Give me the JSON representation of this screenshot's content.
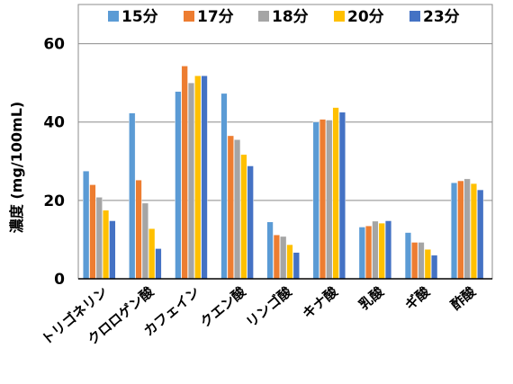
{
  "chart_data": {
    "type": "bar",
    "ylabel": "濃度 (mg/100mL)",
    "ylim": [
      0,
      70
    ],
    "yticks": [
      0,
      20,
      40,
      60
    ],
    "grid": true,
    "legend_position": "top",
    "categories": [
      "トリゴネリン",
      "クロロゲン酸",
      "カフェイン",
      "クエン酸",
      "リンゴ酸",
      "キナ酸",
      "乳酸",
      "ギ酸",
      "酢酸"
    ],
    "series": [
      {
        "name": "15分",
        "color": "#5b9bd5",
        "values": [
          27.5,
          42.3,
          47.8,
          47.3,
          14.5,
          40.0,
          13.2,
          11.8,
          24.5
        ]
      },
      {
        "name": "17分",
        "color": "#ed7d31",
        "values": [
          24.0,
          25.2,
          54.3,
          36.5,
          11.2,
          40.7,
          13.5,
          9.3,
          25.0
        ]
      },
      {
        "name": "18分",
        "color": "#a5a5a5",
        "values": [
          20.8,
          19.3,
          50.0,
          35.5,
          10.8,
          40.5,
          14.7,
          9.3,
          25.5
        ]
      },
      {
        "name": "20分",
        "color": "#ffc000",
        "values": [
          17.5,
          12.8,
          51.8,
          31.7,
          8.7,
          43.7,
          14.2,
          7.5,
          24.3
        ]
      },
      {
        "name": "23分",
        "color": "#4472c4",
        "values": [
          14.8,
          7.7,
          51.8,
          28.8,
          6.7,
          42.5,
          14.8,
          6.0,
          22.7
        ]
      }
    ]
  }
}
